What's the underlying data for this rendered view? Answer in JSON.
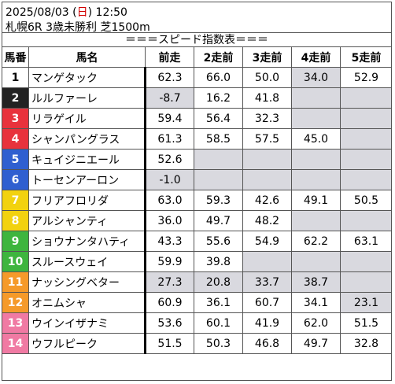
{
  "header": {
    "date": "2025/08/03",
    "weekday_open": " (",
    "weekday": "日",
    "weekday_close": ")",
    "time": "12:50",
    "race": "札幌6R 3歳未勝利 芝1500m"
  },
  "banner": "＝＝＝スピード指数表＝＝＝",
  "columns": [
    "馬番",
    "馬名",
    "前走",
    "2走前",
    "3走前",
    "4走前",
    "5走前"
  ],
  "rows": [
    {
      "num": "1",
      "name": "マンゲタック",
      "color": "#ffffff",
      "text_color": "#000000",
      "vals": [
        "62.3",
        "66.0",
        "50.0",
        "34.0",
        "52.9"
      ],
      "gray": [
        false,
        false,
        false,
        true,
        false
      ]
    },
    {
      "num": "2",
      "name": "ルルファーレ",
      "color": "#222222",
      "text_color": "#ffffff",
      "vals": [
        "-8.7",
        "16.2",
        "41.8",
        "",
        ""
      ],
      "gray": [
        true,
        false,
        false,
        true,
        true
      ]
    },
    {
      "num": "3",
      "name": "リラゲイル",
      "color": "#e8323c",
      "text_color": "#ffffff",
      "vals": [
        "59.4",
        "56.4",
        "32.3",
        "",
        ""
      ],
      "gray": [
        false,
        false,
        false,
        true,
        true
      ]
    },
    {
      "num": "4",
      "name": "シャンパングラス",
      "color": "#e8323c",
      "text_color": "#ffffff",
      "vals": [
        "61.3",
        "58.5",
        "57.5",
        "45.0",
        ""
      ],
      "gray": [
        false,
        false,
        false,
        false,
        true
      ]
    },
    {
      "num": "5",
      "name": "キュイジニエール",
      "color": "#2f5fd0",
      "text_color": "#ffffff",
      "vals": [
        "52.6",
        "",
        "",
        "",
        ""
      ],
      "gray": [
        false,
        true,
        true,
        true,
        true
      ]
    },
    {
      "num": "6",
      "name": "トーセンアーロン",
      "color": "#2f5fd0",
      "text_color": "#ffffff",
      "vals": [
        "-1.0",
        "",
        "",
        "",
        ""
      ],
      "gray": [
        true,
        true,
        true,
        true,
        true
      ]
    },
    {
      "num": "7",
      "name": "フリアフロリダ",
      "color": "#f2d20f",
      "text_color": "#ffffff",
      "vals": [
        "63.0",
        "59.3",
        "42.6",
        "49.1",
        "50.5"
      ],
      "gray": [
        false,
        false,
        false,
        false,
        false
      ]
    },
    {
      "num": "8",
      "name": "アルシャンティ",
      "color": "#f2d20f",
      "text_color": "#ffffff",
      "vals": [
        "36.0",
        "49.7",
        "48.2",
        "",
        ""
      ],
      "gray": [
        false,
        false,
        false,
        true,
        true
      ]
    },
    {
      "num": "9",
      "name": "ショウナンタハティ",
      "color": "#3eb53e",
      "text_color": "#ffffff",
      "vals": [
        "43.3",
        "55.6",
        "54.9",
        "62.2",
        "63.1"
      ],
      "gray": [
        false,
        false,
        false,
        false,
        false
      ]
    },
    {
      "num": "10",
      "name": "スルースウェイ",
      "color": "#3eb53e",
      "text_color": "#ffffff",
      "vals": [
        "59.9",
        "39.8",
        "",
        "",
        ""
      ],
      "gray": [
        false,
        false,
        true,
        true,
        true
      ]
    },
    {
      "num": "11",
      "name": "ナッシングベター",
      "color": "#f59a2a",
      "text_color": "#ffffff",
      "vals": [
        "27.3",
        "20.8",
        "33.7",
        "38.7",
        ""
      ],
      "gray": [
        true,
        true,
        true,
        true,
        true
      ]
    },
    {
      "num": "12",
      "name": "オニムシャ",
      "color": "#f59a2a",
      "text_color": "#ffffff",
      "vals": [
        "60.9",
        "36.1",
        "60.7",
        "34.1",
        "23.1"
      ],
      "gray": [
        false,
        false,
        false,
        false,
        true
      ]
    },
    {
      "num": "13",
      "name": "ウインイザナミ",
      "color": "#f07aa3",
      "text_color": "#ffffff",
      "vals": [
        "53.6",
        "60.1",
        "41.9",
        "62.0",
        "51.5"
      ],
      "gray": [
        false,
        false,
        false,
        false,
        false
      ]
    },
    {
      "num": "14",
      "name": "ウフルピーク",
      "color": "#f07aa3",
      "text_color": "#ffffff",
      "vals": [
        "51.5",
        "50.3",
        "46.8",
        "49.7",
        "32.8"
      ],
      "gray": [
        false,
        false,
        false,
        false,
        false
      ]
    }
  ]
}
